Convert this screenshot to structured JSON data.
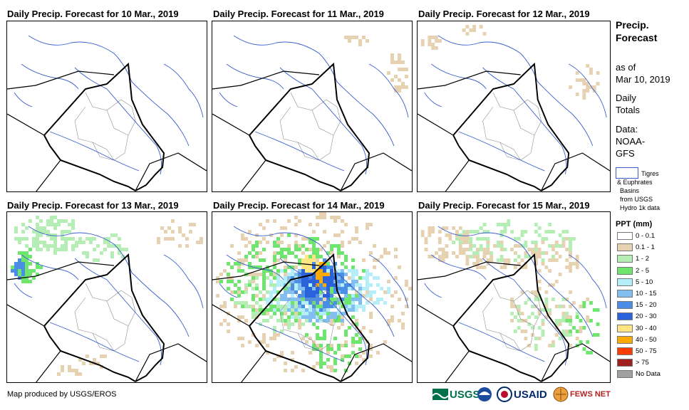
{
  "panels": [
    {
      "title": "Daily Precip. Forecast for 10 Mar., 2019"
    },
    {
      "title": "Daily Precip. Forecast for 11 Mar., 2019"
    },
    {
      "title": "Daily Precip. Forecast for 12 Mar., 2019"
    },
    {
      "title": "Daily Precip. Forecast for 13 Mar., 2019"
    },
    {
      "title": "Daily Precip. Forecast for 14 Mar., 2019"
    },
    {
      "title": "Daily Precip. Forecast for 15 Mar., 2019"
    }
  ],
  "sidebar": {
    "title_line1": "Precip.",
    "title_line2": "Forecast",
    "asof_line1": "as of",
    "asof_line2": "Mar 10, 2019",
    "daily_line1": "Daily",
    "daily_line2": "Totals",
    "data_line1": "Data:",
    "data_line2": "NOAA-",
    "data_line3": "GFS",
    "basin_line1": "Tigres",
    "basin_line2": "& Euphrates",
    "basin_line3": "Basins",
    "basin_line4": "from USGS",
    "basin_line5": "Hydro 1k data"
  },
  "legend": {
    "title": "PPT (mm)",
    "items": [
      {
        "label": "0 - 0.1",
        "color": "#ffffff"
      },
      {
        "label": "0.1 - 1",
        "color": "#e6d2b0"
      },
      {
        "label": "1 - 2",
        "color": "#b4eeb4"
      },
      {
        "label": "2 - 5",
        "color": "#6ee66e"
      },
      {
        "label": "5 - 10",
        "color": "#b4eef8"
      },
      {
        "label": "10 - 15",
        "color": "#82bef0"
      },
      {
        "label": "15 - 20",
        "color": "#4a8ee6"
      },
      {
        "label": "20 - 30",
        "color": "#2a62dc"
      },
      {
        "label": "30 - 40",
        "color": "#ffe682"
      },
      {
        "label": "40 - 50",
        "color": "#ffaa00"
      },
      {
        "label": "50 - 75",
        "color": "#ff3c00"
      },
      {
        "label": "> 75",
        "color": "#a01e1e"
      },
      {
        "label": "No Data",
        "color": "#a0a0a0"
      }
    ]
  },
  "footer": {
    "credit": "Map produced by USGS/EROS",
    "logo_usgs": "USGS",
    "logo_usaid": "USAID",
    "logo_fews": "FEWS NET"
  }
}
